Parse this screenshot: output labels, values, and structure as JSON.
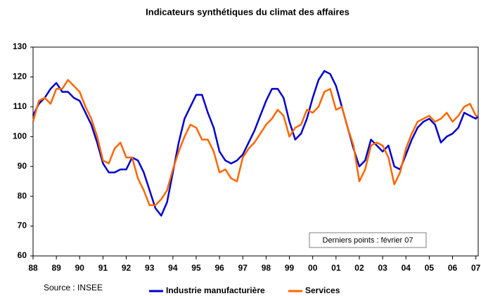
{
  "chart_data": {
    "type": "line",
    "title": "Indicateurs synthétiques du climat des affaires",
    "annotation": "Derniers points : février 07",
    "source": "Source : INSEE",
    "x": [
      1988,
      1988.25,
      1988.5,
      1988.75,
      1989,
      1989.25,
      1989.5,
      1989.75,
      1990,
      1990.25,
      1990.5,
      1990.75,
      1991,
      1991.25,
      1991.5,
      1991.75,
      1992,
      1992.25,
      1992.5,
      1992.75,
      1993,
      1993.25,
      1993.5,
      1993.75,
      1994,
      1994.25,
      1994.5,
      1994.75,
      1995,
      1995.25,
      1995.5,
      1995.75,
      1996,
      1996.25,
      1996.5,
      1996.75,
      1997,
      1997.25,
      1997.5,
      1997.75,
      1998,
      1998.25,
      1998.5,
      1998.75,
      1999,
      1999.25,
      1999.5,
      1999.75,
      2000,
      2000.25,
      2000.5,
      2000.75,
      2001,
      2001.25,
      2001.5,
      2001.75,
      2002,
      2002.25,
      2002.5,
      2002.75,
      2003,
      2003.25,
      2003.5,
      2003.75,
      2004,
      2004.25,
      2004.5,
      2004.75,
      2005,
      2005.25,
      2005.5,
      2005.75,
      2006,
      2006.25,
      2006.5,
      2006.75,
      2007,
      2007.1
    ],
    "series": [
      {
        "name": "Industrie manufacturière",
        "color": "#0000cc",
        "values": [
          107,
          111,
          113,
          116,
          118,
          115,
          115,
          113,
          112,
          108,
          104,
          98,
          91,
          88,
          88,
          89,
          89,
          93,
          92,
          88,
          82,
          76,
          73.5,
          78,
          88,
          98,
          106,
          110,
          114,
          114,
          108,
          103,
          95,
          92,
          91,
          92,
          94,
          98,
          102,
          107,
          112,
          116,
          116,
          113,
          105,
          99,
          101,
          106,
          113,
          119,
          122,
          121,
          117,
          110,
          103,
          96,
          90,
          92,
          99,
          97,
          95,
          97,
          90,
          89,
          94,
          99,
          103,
          105,
          106,
          104,
          98,
          100,
          101,
          103,
          108,
          107,
          106,
          107
        ]
      },
      {
        "name": "Services",
        "color": "#ff6600",
        "values": [
          105,
          112,
          113,
          111,
          116,
          116,
          119,
          117,
          115,
          110,
          106,
          100,
          92,
          91,
          96,
          98,
          93,
          93,
          86,
          82,
          77,
          77,
          79,
          82,
          89,
          95,
          100,
          104,
          103,
          99,
          99,
          95,
          88,
          89,
          86,
          85,
          93,
          96,
          98,
          101,
          104,
          106,
          109,
          107,
          100,
          103,
          104,
          109,
          108,
          110,
          115,
          116,
          109,
          110,
          103,
          97,
          85,
          89,
          97,
          98,
          97,
          93,
          84,
          88,
          96,
          101,
          105,
          106,
          107,
          105,
          106,
          108,
          105,
          107,
          110,
          111,
          107,
          107
        ]
      }
    ],
    "xlim": [
      1988,
      2007.1
    ],
    "xticks": [
      {
        "value": 1988,
        "label": "88"
      },
      {
        "value": 1989,
        "label": "89"
      },
      {
        "value": 1990,
        "label": "90"
      },
      {
        "value": 1991,
        "label": "91"
      },
      {
        "value": 1992,
        "label": "92"
      },
      {
        "value": 1993,
        "label": "93"
      },
      {
        "value": 1994,
        "label": "94"
      },
      {
        "value": 1995,
        "label": "95"
      },
      {
        "value": 1996,
        "label": "96"
      },
      {
        "value": 1997,
        "label": "97"
      },
      {
        "value": 1998,
        "label": "98"
      },
      {
        "value": 1999,
        "label": "99"
      },
      {
        "value": 2000,
        "label": "00"
      },
      {
        "value": 2001,
        "label": "01"
      },
      {
        "value": 2002,
        "label": "02"
      },
      {
        "value": 2003,
        "label": "03"
      },
      {
        "value": 2004,
        "label": "04"
      },
      {
        "value": 2005,
        "label": "05"
      },
      {
        "value": 2006,
        "label": "06"
      },
      {
        "value": 2007,
        "label": "07"
      }
    ],
    "ylim": [
      60,
      130
    ],
    "yticks": [
      60,
      70,
      80,
      90,
      100,
      110,
      120,
      130
    ],
    "grid": false,
    "legend": "bottom"
  }
}
